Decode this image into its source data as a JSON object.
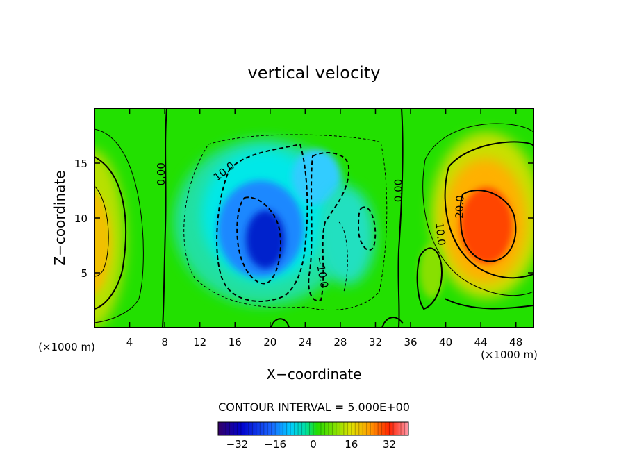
{
  "chart_data": {
    "type": "heatmap",
    "title": "vertical velocity",
    "xlabel": "X−coordinate",
    "ylabel": "Z−coordinate",
    "x_unit_left": "(×1000 m)",
    "x_unit_right": "(×1000 m)",
    "xlim": [
      0,
      50
    ],
    "ylim": [
      0,
      20
    ],
    "x_ticks": [
      4,
      8,
      12,
      16,
      20,
      24,
      28,
      32,
      36,
      40,
      44,
      48
    ],
    "y_ticks": [
      5,
      10,
      15
    ],
    "contour_interval_label": "CONTOUR INTERVAL = 5.000E+00",
    "colorbar": {
      "range": [
        -40,
        40
      ],
      "ticks": [
        -32,
        -16,
        0,
        16,
        32
      ],
      "tick_labels": [
        "−32",
        "−16",
        "0",
        "16",
        "32"
      ]
    },
    "contour_labels": [
      {
        "text": "0.00",
        "x": 8,
        "y": 14
      },
      {
        "text": "10.0",
        "x": 15,
        "y": 14
      },
      {
        "text": "−10.0",
        "x": 25.5,
        "y": 5
      },
      {
        "text": "0.00",
        "x": 35,
        "y": 12.5
      },
      {
        "text": "20.0",
        "x": 42,
        "y": 11
      },
      {
        "text": "10.0",
        "x": 39,
        "y": 8.5
      }
    ],
    "features": [
      {
        "kind": "max",
        "x": 0,
        "y": 8,
        "value": 18
      },
      {
        "kind": "min",
        "x": 19,
        "y": 8.5,
        "value": -27
      },
      {
        "kind": "min",
        "x": 24,
        "y": 12,
        "value": -14
      },
      {
        "kind": "max",
        "x": 44.5,
        "y": 9,
        "value": 28
      }
    ]
  }
}
